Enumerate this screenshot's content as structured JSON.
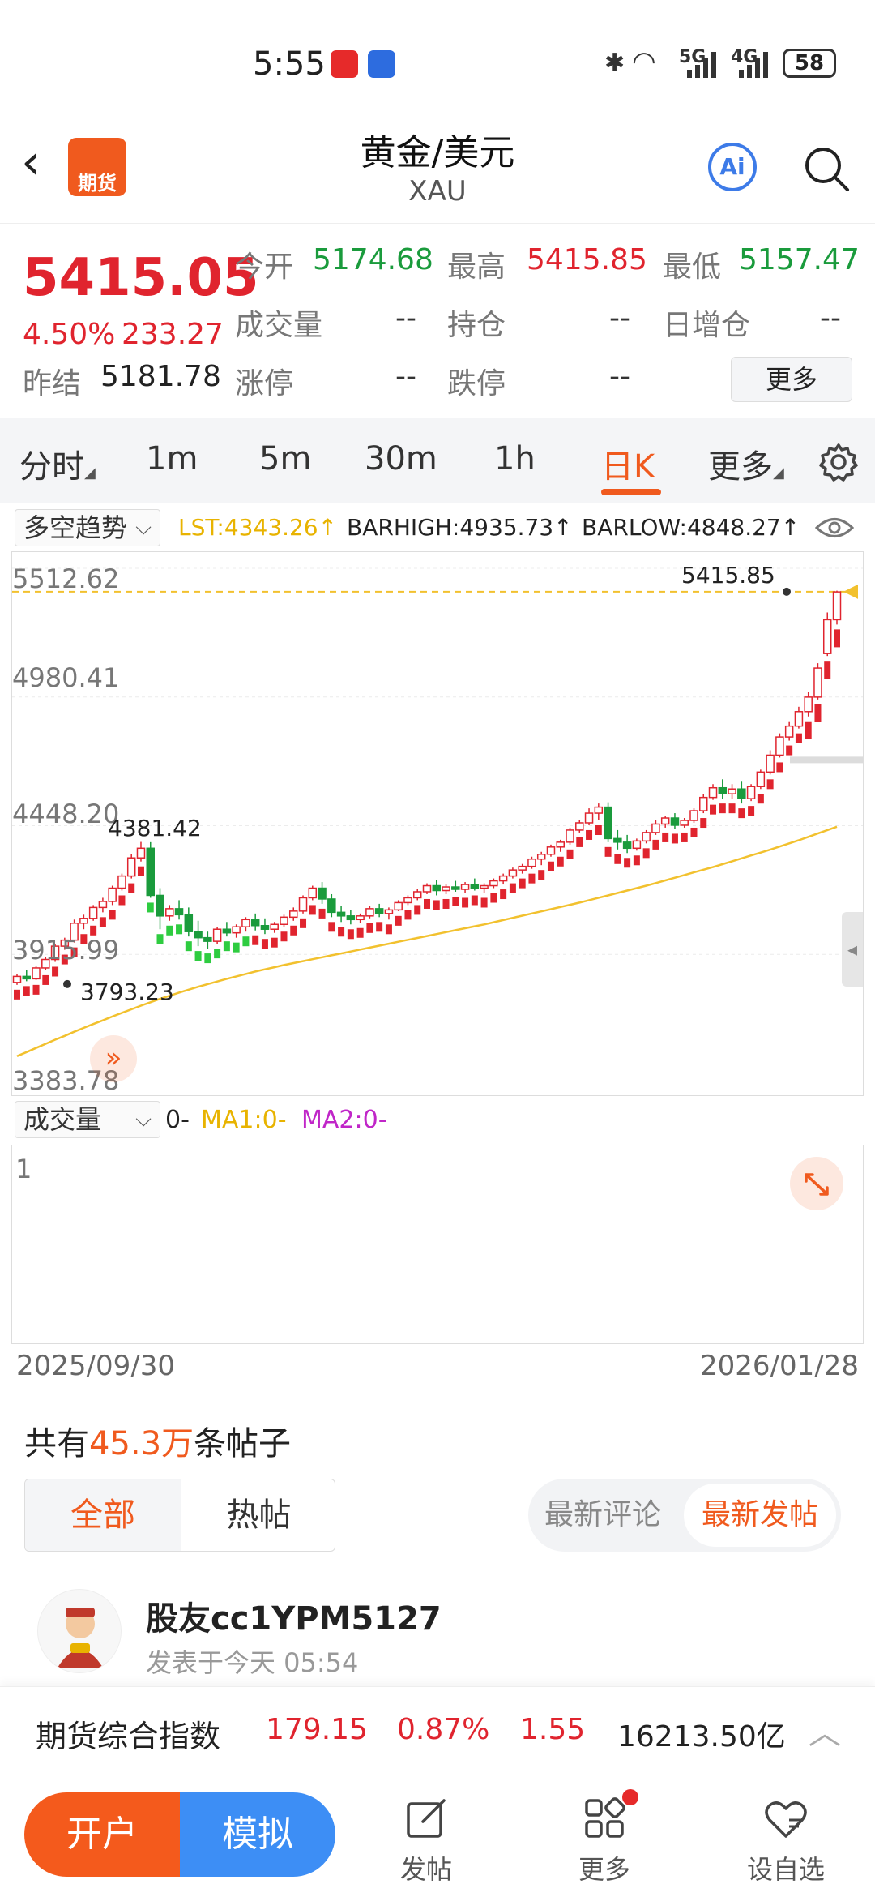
{
  "status": {
    "time": "5:55",
    "battery": "58",
    "net1": "5G",
    "net2": "4G"
  },
  "header": {
    "title": "黄金/美元",
    "subtitle": "XAU",
    "badge": "期货",
    "ai_label": "Ai"
  },
  "quote": {
    "price": "5415.05",
    "change_pct": "4.50%",
    "change_val": "233.27",
    "prev_close_label": "昨结",
    "prev_close": "5181.78",
    "open_label": "今开",
    "open": "5174.68",
    "high_label": "最高",
    "high": "5415.85",
    "low_label": "最低",
    "low": "5157.47",
    "volume_label": "成交量",
    "volume": "--",
    "oi_label": "持仓",
    "oi": "--",
    "daily_oi_label": "日增仓",
    "daily_oi": "--",
    "limit_up_label": "涨停",
    "limit_up": "--",
    "limit_down_label": "跌停",
    "limit_down": "--",
    "more_button": "更多"
  },
  "tabs": {
    "items": [
      "分时",
      "1m",
      "5m",
      "30m",
      "1h",
      "日K",
      "更多"
    ],
    "active": "日K"
  },
  "indicator": {
    "selector": "多空趋势",
    "lst": "LST:4343.26↑",
    "barhigh": "BARHIGH:4935.73↑",
    "barlow": "BARLOW:4848.27↑"
  },
  "chart_data": {
    "type": "candlestick",
    "y_ticks": [
      "5512.62",
      "4980.41",
      "4448.20",
      "3915.99",
      "3383.78"
    ],
    "ylim": [
      3383.78,
      5512.62
    ],
    "annotations": {
      "high_label": "5415.85",
      "peak_label": "4381.42",
      "low_label": "3793.23"
    },
    "x_start": "2025/09/30",
    "x_end": "2026/01/28",
    "candles": [
      [
        3800,
        3835,
        3790,
        3825
      ],
      [
        3825,
        3850,
        3805,
        3815
      ],
      [
        3815,
        3870,
        3810,
        3860
      ],
      [
        3860,
        3905,
        3850,
        3895
      ],
      [
        3895,
        3960,
        3885,
        3950
      ],
      [
        3950,
        3985,
        3935,
        3975
      ],
      [
        3975,
        4060,
        3965,
        4045
      ],
      [
        4045,
        4080,
        4020,
        4065
      ],
      [
        4065,
        4120,
        4055,
        4110
      ],
      [
        4110,
        4150,
        4090,
        4135
      ],
      [
        4135,
        4200,
        4120,
        4190
      ],
      [
        4190,
        4250,
        4180,
        4240
      ],
      [
        4240,
        4330,
        4230,
        4315
      ],
      [
        4315,
        4381,
        4300,
        4355
      ],
      [
        4355,
        4380,
        4150,
        4160
      ],
      [
        4160,
        4190,
        4020,
        4075
      ],
      [
        4075,
        4120,
        4055,
        4105
      ],
      [
        4105,
        4140,
        4060,
        4080
      ],
      [
        4080,
        4110,
        3990,
        4010
      ],
      [
        4010,
        4055,
        3950,
        3985
      ],
      [
        3985,
        4010,
        3940,
        3970
      ],
      [
        3970,
        4030,
        3960,
        4020
      ],
      [
        4020,
        4050,
        3990,
        4005
      ],
      [
        4005,
        4040,
        3985,
        4030
      ],
      [
        4030,
        4070,
        4010,
        4060
      ],
      [
        4060,
        4085,
        4015,
        4035
      ],
      [
        4035,
        4065,
        4000,
        4020
      ],
      [
        4020,
        4050,
        4005,
        4040
      ],
      [
        4040,
        4080,
        4030,
        4070
      ],
      [
        4070,
        4110,
        4055,
        4095
      ],
      [
        4095,
        4160,
        4085,
        4150
      ],
      [
        4150,
        4200,
        4140,
        4190
      ],
      [
        4190,
        4215,
        4125,
        4145
      ],
      [
        4145,
        4165,
        4070,
        4090
      ],
      [
        4090,
        4115,
        4050,
        4075
      ],
      [
        4075,
        4100,
        4040,
        4060
      ],
      [
        4060,
        4085,
        4045,
        4075
      ],
      [
        4075,
        4115,
        4065,
        4105
      ],
      [
        4105,
        4125,
        4070,
        4085
      ],
      [
        4085,
        4110,
        4060,
        4100
      ],
      [
        4100,
        4140,
        4095,
        4130
      ],
      [
        4130,
        4160,
        4120,
        4150
      ],
      [
        4150,
        4185,
        4140,
        4175
      ],
      [
        4175,
        4210,
        4165,
        4200
      ],
      [
        4200,
        4225,
        4160,
        4180
      ],
      [
        4180,
        4205,
        4165,
        4195
      ],
      [
        4195,
        4220,
        4175,
        4185
      ],
      [
        4185,
        4215,
        4170,
        4205
      ],
      [
        4205,
        4230,
        4180,
        4190
      ],
      [
        4190,
        4210,
        4170,
        4200
      ],
      [
        4200,
        4230,
        4190,
        4220
      ],
      [
        4220,
        4250,
        4205,
        4240
      ],
      [
        4240,
        4275,
        4230,
        4265
      ],
      [
        4265,
        4290,
        4250,
        4280
      ],
      [
        4280,
        4320,
        4270,
        4310
      ],
      [
        4310,
        4340,
        4285,
        4330
      ],
      [
        4330,
        4370,
        4320,
        4360
      ],
      [
        4360,
        4390,
        4340,
        4380
      ],
      [
        4380,
        4440,
        4370,
        4430
      ],
      [
        4430,
        4470,
        4420,
        4460
      ],
      [
        4460,
        4520,
        4450,
        4500
      ],
      [
        4500,
        4540,
        4470,
        4525
      ],
      [
        4525,
        4545,
        4380,
        4395
      ],
      [
        4395,
        4430,
        4350,
        4380
      ],
      [
        4380,
        4410,
        4335,
        4355
      ],
      [
        4355,
        4395,
        4345,
        4385
      ],
      [
        4385,
        4430,
        4375,
        4420
      ],
      [
        4420,
        4470,
        4410,
        4455
      ],
      [
        4455,
        4490,
        4440,
        4480
      ],
      [
        4480,
        4500,
        4435,
        4450
      ],
      [
        4450,
        4480,
        4440,
        4470
      ],
      [
        4470,
        4520,
        4460,
        4510
      ],
      [
        4510,
        4580,
        4500,
        4565
      ],
      [
        4565,
        4620,
        4555,
        4605
      ],
      [
        4605,
        4640,
        4560,
        4580
      ],
      [
        4580,
        4620,
        4560,
        4600
      ],
      [
        4600,
        4630,
        4540,
        4560
      ],
      [
        4560,
        4620,
        4550,
        4610
      ],
      [
        4610,
        4680,
        4600,
        4670
      ],
      [
        4670,
        4760,
        4660,
        4740
      ],
      [
        4740,
        4830,
        4730,
        4815
      ],
      [
        4815,
        4880,
        4800,
        4860
      ],
      [
        4860,
        4940,
        4850,
        4920
      ],
      [
        4920,
        5000,
        4900,
        4980
      ],
      [
        4980,
        5120,
        4970,
        5100
      ],
      [
        5160,
        5330,
        5150,
        5300
      ],
      [
        5300,
        5420,
        5280,
        5415
      ]
    ],
    "ma_values": [
      3495,
      3512,
      3529,
      3546,
      3563,
      3579,
      3596,
      3612,
      3628,
      3643,
      3659,
      3674,
      3689,
      3704,
      3718,
      3732,
      3745,
      3758,
      3770,
      3782,
      3793,
      3804,
      3815,
      3825,
      3835,
      3845,
      3854,
      3863,
      3872,
      3880,
      3888,
      3896,
      3904,
      3912,
      3920,
      3928,
      3936,
      3944,
      3952,
      3960,
      3968,
      3976,
      3984,
      3992,
      4000,
      4008,
      4016,
      4024,
      4032,
      4040,
      4049,
      4058,
      4067,
      4076,
      4085,
      4094,
      4103,
      4112,
      4121,
      4130,
      4140,
      4150,
      4160,
      4170,
      4180,
      4190,
      4200,
      4211,
      4222,
      4233,
      4244,
      4255,
      4266,
      4277,
      4289,
      4301,
      4313,
      4325,
      4337,
      4349,
      4362,
      4375,
      4388,
      4402,
      4416,
      4430,
      4444
    ]
  },
  "volume": {
    "selector": "成交量",
    "value": "0-",
    "ma1": "MA1:0-",
    "ma2": "MA2:0-",
    "axis_max": "1"
  },
  "posts": {
    "count_prefix": "共有",
    "count": "45.3万",
    "count_suffix": "条帖子",
    "filter_all": "全部",
    "filter_hot": "热帖",
    "sort_comment": "最新评论",
    "sort_post": "最新发帖",
    "first": {
      "user": "股友cc1YPM5127",
      "meta": "发表于今天 05:54"
    }
  },
  "index": {
    "name": "期货综合指数",
    "value": "179.15",
    "pct": "0.87%",
    "change": "1.55",
    "turnover": "16213.50亿"
  },
  "nav": {
    "open_account": "开户",
    "simulate": "模拟",
    "post": "发帖",
    "more": "更多",
    "watch": "设自选"
  },
  "colors": {
    "up": "#e0242e",
    "down": "#1a9b3c",
    "accent": "#f05a1e",
    "blue": "#3d8ef5",
    "ma": "#f2c12e"
  }
}
